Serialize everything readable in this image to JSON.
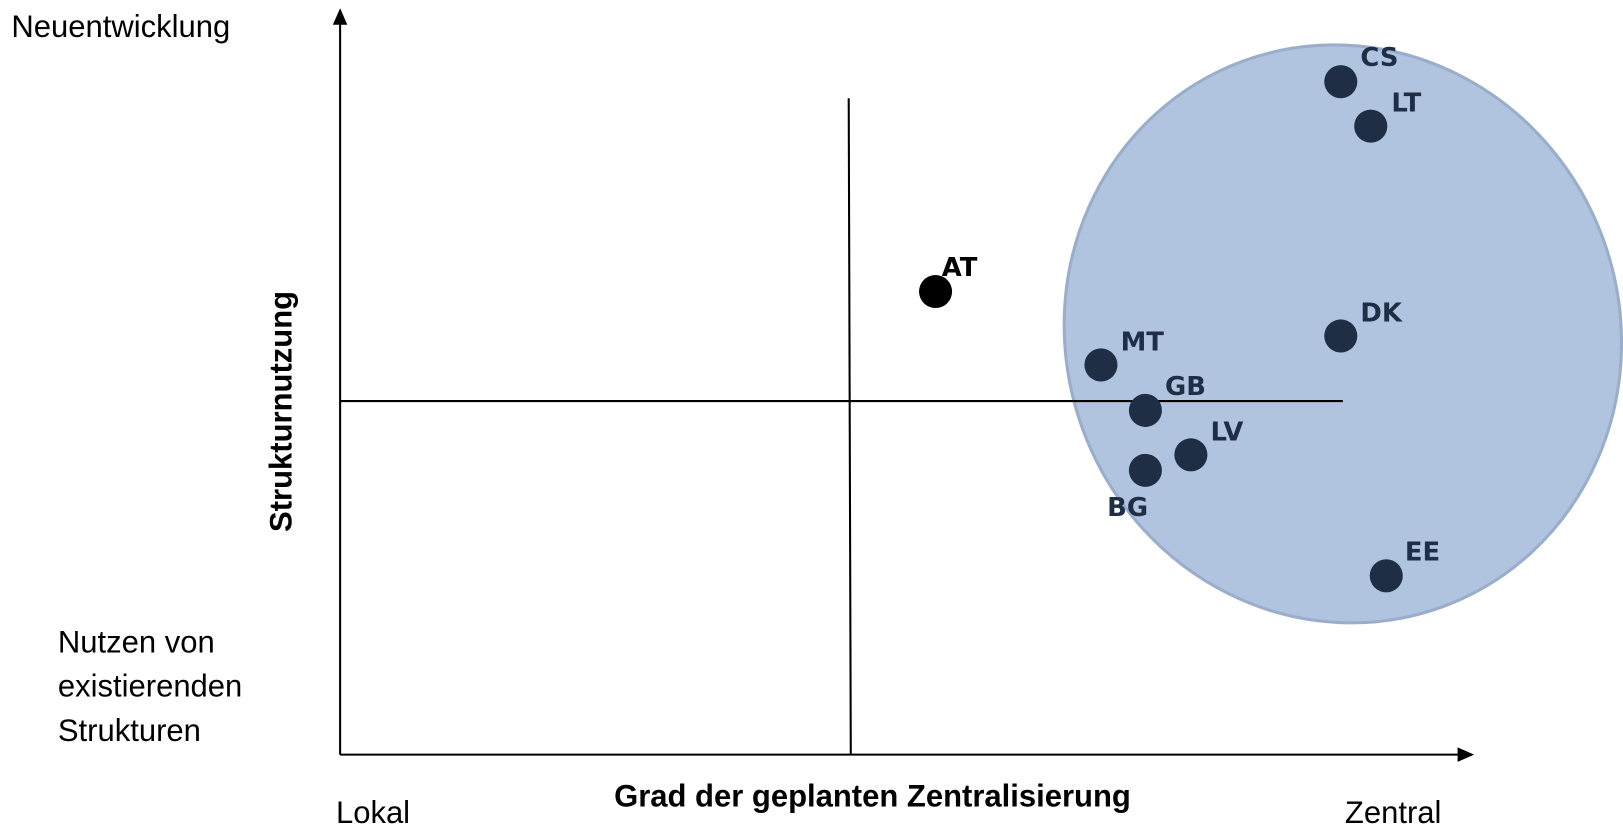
{
  "axes": {
    "y_top": "Neuentwicklung",
    "y_bottom": [
      "Nutzen von",
      "existierenden",
      "Strukturen"
    ],
    "y_title": "Strukturnutzung",
    "x_title": "Grad der geplanten Zentralisierung",
    "x_left": "Lokal",
    "x_right": "Zentral"
  },
  "points": [
    {
      "label": "CS"
    },
    {
      "label": "LT"
    },
    {
      "label": "AT"
    },
    {
      "label": "DK"
    },
    {
      "label": "MT"
    },
    {
      "label": "GB"
    },
    {
      "label": "LV"
    },
    {
      "label": "BG"
    },
    {
      "label": "EE"
    }
  ]
}
